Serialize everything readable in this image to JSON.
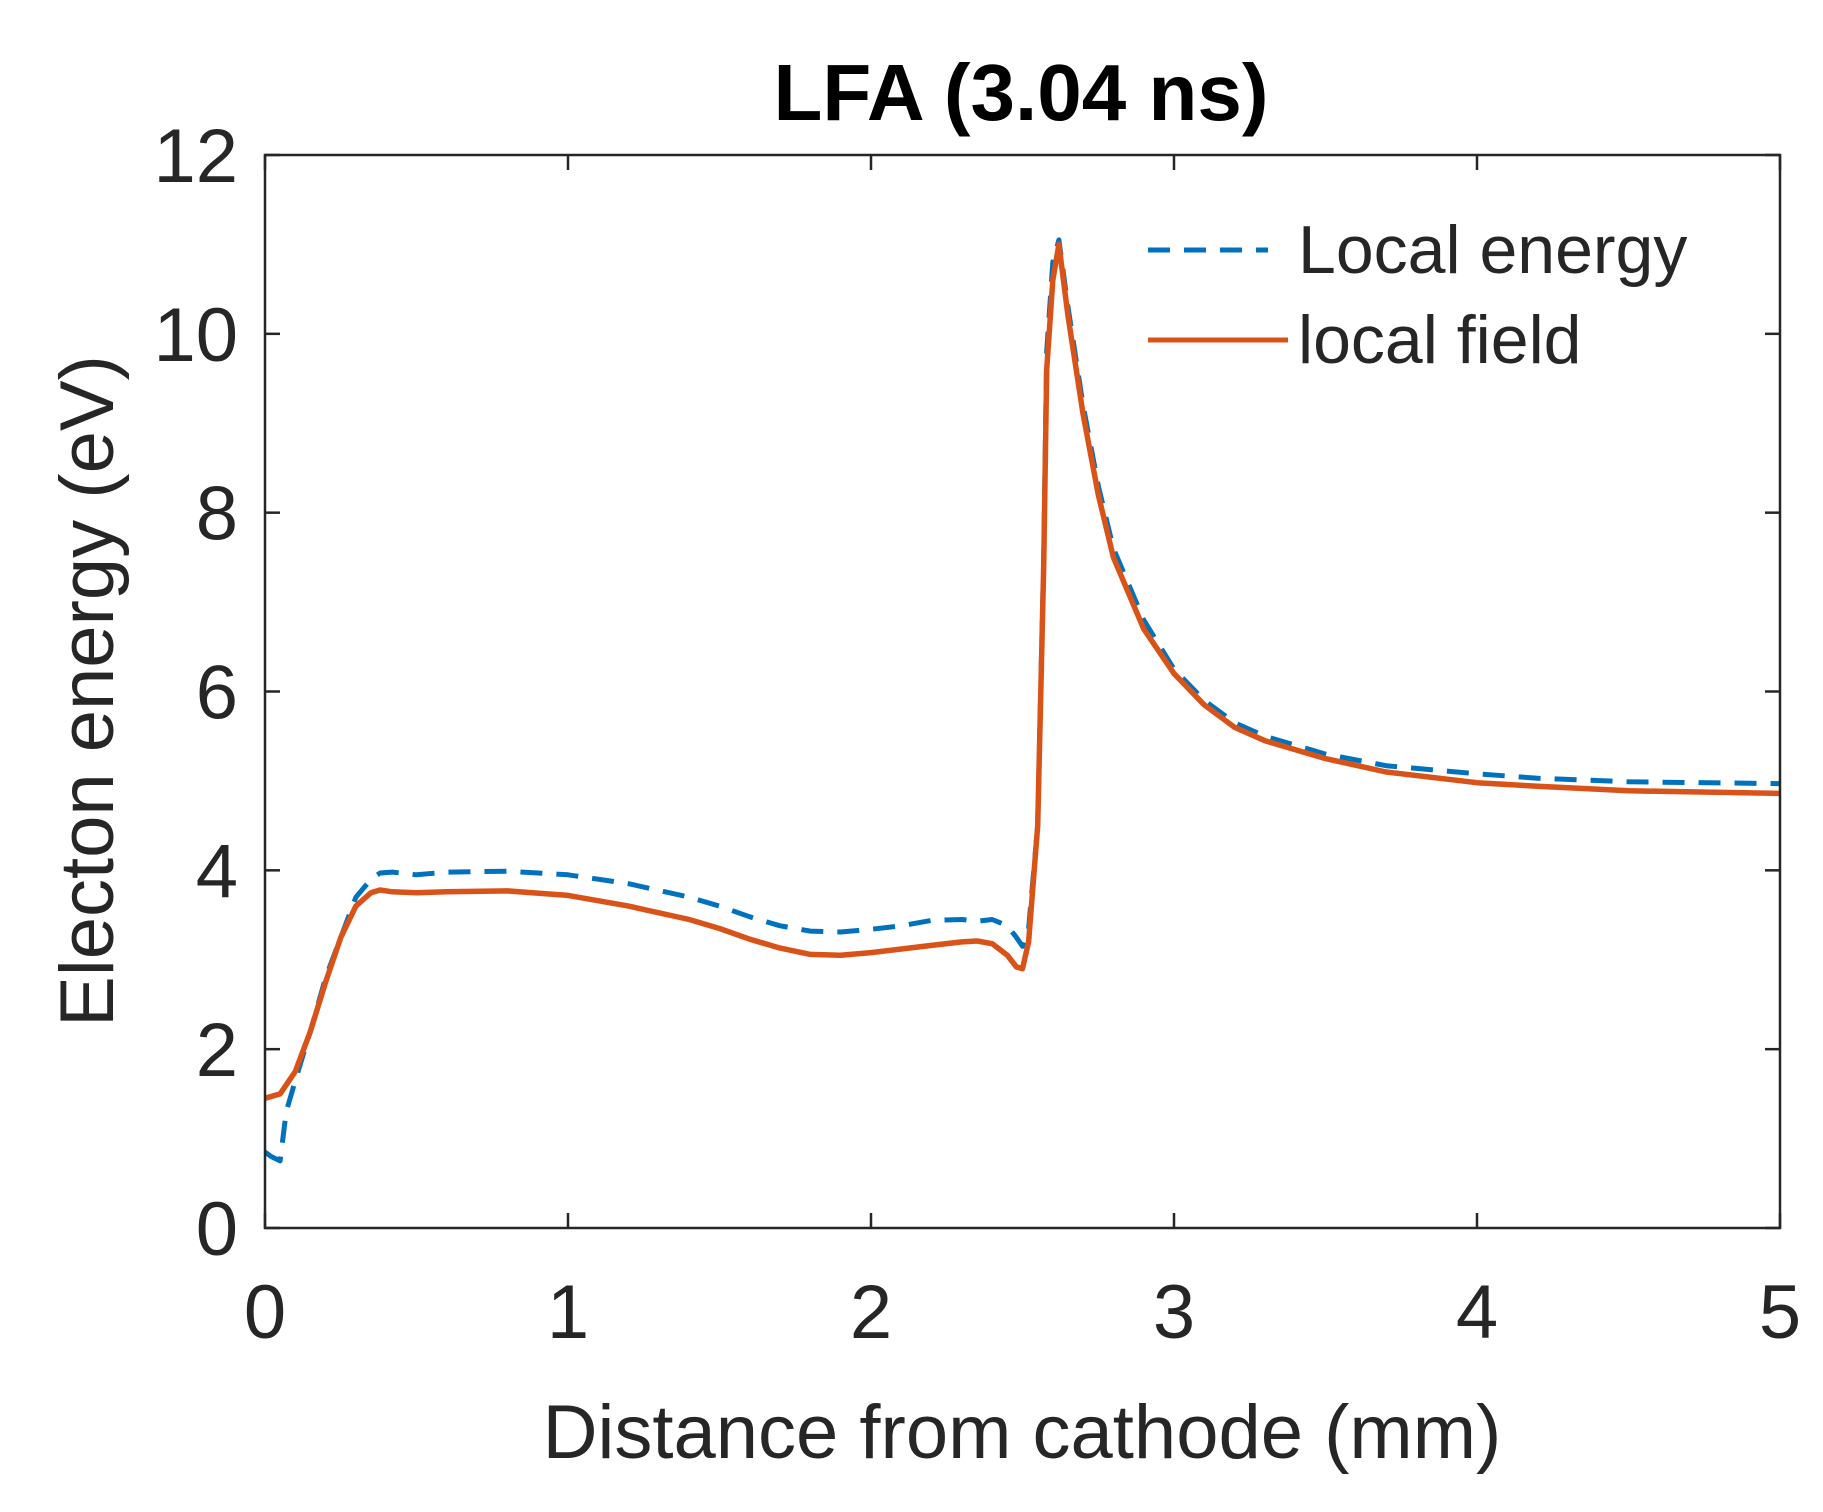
{
  "chart_data": {
    "type": "line",
    "title": "LFA (3.04 ns)",
    "xlabel": "Distance from cathode (mm)",
    "ylabel": "Electon energy (eV)",
    "xlim": [
      0,
      5
    ],
    "ylim": [
      0,
      12
    ],
    "xticks": [
      0,
      1,
      2,
      3,
      4,
      5
    ],
    "yticks": [
      0,
      2,
      4,
      6,
      8,
      10,
      12
    ],
    "xtick_labels": [
      "0",
      "1",
      "2",
      "3",
      "4",
      "5"
    ],
    "ytick_labels": [
      "0",
      "2",
      "4",
      "6",
      "8",
      "10",
      "12"
    ],
    "grid": false,
    "legend_position": "top-right",
    "series": [
      {
        "name": "Local energy",
        "color": "#0072BD",
        "style": "dashed",
        "x": [
          0.0,
          0.02,
          0.05,
          0.07,
          0.1,
          0.15,
          0.2,
          0.25,
          0.3,
          0.35,
          0.38,
          0.42,
          0.5,
          0.6,
          0.8,
          1.0,
          1.2,
          1.4,
          1.5,
          1.6,
          1.7,
          1.8,
          1.9,
          2.0,
          2.1,
          2.2,
          2.3,
          2.35,
          2.4,
          2.45,
          2.48,
          2.5,
          2.52,
          2.55,
          2.57,
          2.58,
          2.6,
          2.62,
          2.65,
          2.7,
          2.75,
          2.8,
          2.9,
          3.0,
          3.1,
          3.2,
          3.3,
          3.5,
          3.7,
          4.0,
          4.2,
          4.5,
          5.0
        ],
        "y": [
          0.85,
          0.8,
          0.75,
          1.3,
          1.65,
          2.2,
          2.8,
          3.25,
          3.7,
          3.9,
          3.97,
          3.98,
          3.95,
          3.98,
          3.99,
          3.95,
          3.85,
          3.7,
          3.6,
          3.48,
          3.38,
          3.32,
          3.31,
          3.34,
          3.38,
          3.44,
          3.45,
          3.43,
          3.45,
          3.38,
          3.25,
          3.15,
          3.35,
          4.5,
          7.5,
          9.8,
          10.8,
          11.05,
          10.3,
          9.2,
          8.3,
          7.6,
          6.8,
          6.25,
          5.9,
          5.65,
          5.5,
          5.3,
          5.17,
          5.08,
          5.03,
          4.99,
          4.97
        ]
      },
      {
        "name": "local field",
        "color": "#D95319",
        "style": "solid",
        "x": [
          0.0,
          0.05,
          0.1,
          0.15,
          0.2,
          0.25,
          0.3,
          0.35,
          0.38,
          0.42,
          0.5,
          0.6,
          0.8,
          1.0,
          1.2,
          1.4,
          1.5,
          1.6,
          1.7,
          1.8,
          1.9,
          2.0,
          2.1,
          2.2,
          2.3,
          2.35,
          2.4,
          2.45,
          2.48,
          2.5,
          2.52,
          2.55,
          2.57,
          2.58,
          2.6,
          2.62,
          2.65,
          2.7,
          2.75,
          2.8,
          2.9,
          3.0,
          3.1,
          3.2,
          3.3,
          3.5,
          3.7,
          4.0,
          4.2,
          4.5,
          5.0
        ],
        "y": [
          1.45,
          1.5,
          1.75,
          2.2,
          2.75,
          3.25,
          3.6,
          3.75,
          3.78,
          3.76,
          3.75,
          3.76,
          3.77,
          3.72,
          3.6,
          3.45,
          3.35,
          3.23,
          3.13,
          3.06,
          3.05,
          3.08,
          3.12,
          3.16,
          3.2,
          3.21,
          3.18,
          3.05,
          2.92,
          2.9,
          3.2,
          4.5,
          7.4,
          9.6,
          10.6,
          11.0,
          10.2,
          9.1,
          8.2,
          7.5,
          6.7,
          6.2,
          5.85,
          5.6,
          5.45,
          5.25,
          5.1,
          4.98,
          4.94,
          4.89,
          4.86
        ]
      }
    ]
  }
}
